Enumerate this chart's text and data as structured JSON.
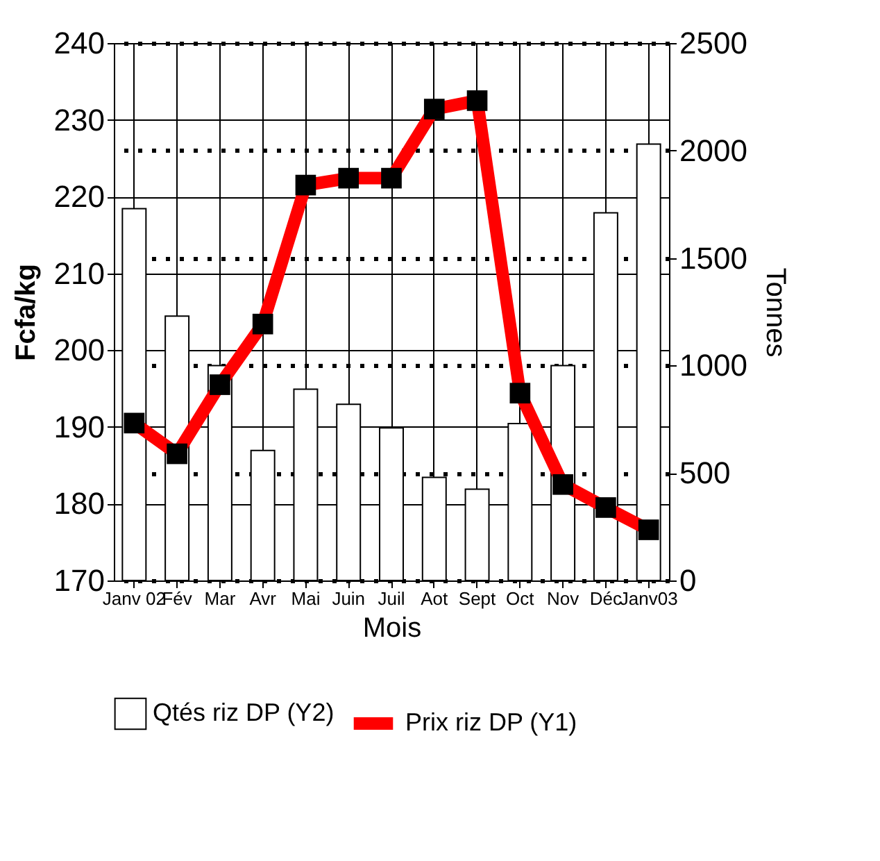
{
  "chart_data": {
    "type": "bar",
    "xlabel": "Mois",
    "ylabel": "Fcfa/kg",
    "y2label": "Tonnes",
    "categories": [
      "Janv 02",
      "Fév",
      "Mar",
      "Avr",
      "Mai",
      "Juin",
      "Juil",
      "Aot",
      "Sept",
      "Oct",
      "Nov",
      "Déc",
      "Janv03"
    ],
    "series": [
      {
        "name": "Qtés riz DP (Y2)",
        "axis": "y2",
        "color": "#ffffff",
        "values": [
          1730,
          1230,
          1000,
          605,
          890,
          820,
          710,
          480,
          425,
          730,
          1000,
          1710,
          2030
        ]
      },
      {
        "name": "Prix riz DP (Y1)",
        "type": "line",
        "color": "#ff0000",
        "values": [
          190.5,
          186.5,
          195.5,
          203.4,
          221.5,
          222.4,
          222.4,
          231.4,
          232.5,
          194.4,
          182.5,
          179.5,
          176.6
        ]
      }
    ],
    "ylim": [
      170,
      240
    ],
    "yticks": [
      170,
      180,
      190,
      200,
      210,
      220,
      230,
      240
    ],
    "y2lim": [
      0,
      2500
    ],
    "y2ticks": [
      0,
      500,
      1000,
      1500,
      2000,
      2500
    ],
    "grid": true,
    "legend": "bottom",
    "marker": "square"
  }
}
